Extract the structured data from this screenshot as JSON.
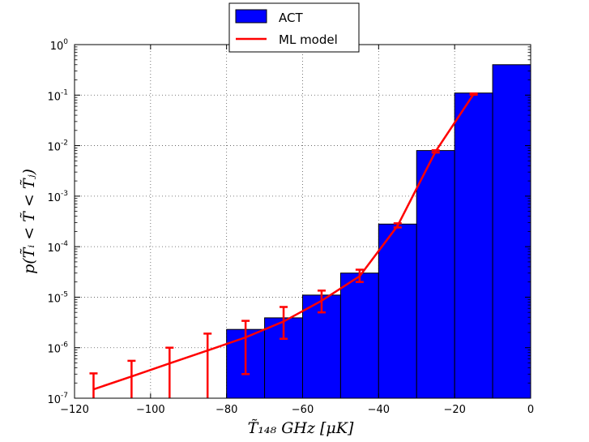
{
  "chart_data": {
    "type": "bar",
    "title": "",
    "xlabel": "T̃₁₄₈ GHz [μK]",
    "ylabel": "p(T̃ᵢ < T̃ < T̃ⱼ)",
    "xlim": [
      -120,
      0
    ],
    "ylim": [
      1e-07,
      1
    ],
    "yscale": "log",
    "grid": true,
    "legend_position": "top-center",
    "x_ticks": [
      -120,
      -100,
      -80,
      -60,
      -40,
      -20,
      0
    ],
    "x_tick_labels": [
      "−120",
      "−100",
      "−80",
      "−60",
      "−40",
      "−20",
      "0"
    ],
    "y_ticks": [
      {
        "value": 1e-07,
        "base": "10",
        "exp": "-7"
      },
      {
        "value": 1e-06,
        "base": "10",
        "exp": "-6"
      },
      {
        "value": 1e-05,
        "base": "10",
        "exp": "-5"
      },
      {
        "value": 0.0001,
        "base": "10",
        "exp": "-4"
      },
      {
        "value": 0.001,
        "base": "10",
        "exp": "-3"
      },
      {
        "value": 0.01,
        "base": "10",
        "exp": "-2"
      },
      {
        "value": 0.1,
        "base": "10",
        "exp": "-1"
      },
      {
        "value": 1,
        "base": "10",
        "exp": "0"
      }
    ],
    "bars": {
      "name": "ACT",
      "color": "#0000ff",
      "edges": [
        -80,
        -70,
        -60,
        -50,
        -40,
        -30,
        -20,
        -10,
        0
      ],
      "values": [
        2.3e-06,
        3.9e-06,
        1.1e-05,
        3e-05,
        0.00028,
        0.008,
        0.11,
        0.4
      ]
    },
    "line": {
      "name": "ML model",
      "color": "#ff0000",
      "x": [
        -115,
        -105,
        -95,
        -85,
        -75,
        -65,
        -55,
        -45,
        -35,
        -25,
        -15
      ],
      "y": [
        1.5e-07,
        2.7e-07,
        4.9e-07,
        8.8e-07,
        1.6e-06,
        3.3e-06,
        8.5e-06,
        2.6e-05,
        0.00026,
        0.0077,
        0.105
      ],
      "err_low": [
        1e-07,
        1e-07,
        1e-07,
        1e-07,
        3e-07,
        1.5e-06,
        5e-06,
        2e-05,
        0.00024,
        0.0073,
        0.102
      ],
      "err_high": [
        3.1e-07,
        5.5e-07,
        1e-06,
        1.9e-06,
        3.4e-06,
        6.4e-06,
        1.35e-05,
        3.5e-05,
        0.00029,
        0.0081,
        0.108
      ]
    },
    "legend": [
      {
        "label": "ACT",
        "kind": "bar"
      },
      {
        "label": "ML model",
        "kind": "line"
      }
    ]
  }
}
